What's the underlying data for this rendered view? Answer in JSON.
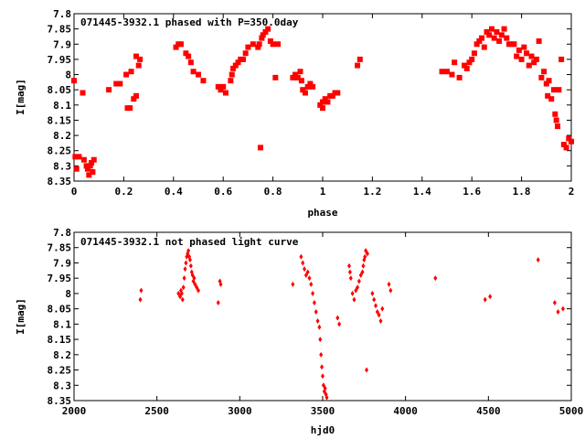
{
  "chart_data": [
    {
      "type": "scatter",
      "title": "071445-3932.1 phased with P=350.0day",
      "xlabel": "phase",
      "ylabel": "I[mag]",
      "xlim": [
        0,
        2
      ],
      "ylim": [
        8.35,
        7.8
      ],
      "y_inverted": true,
      "grid": false,
      "marker": "filled-square",
      "color": "#ff0000",
      "xticks": [
        "0",
        "0.2",
        "0.4",
        "0.6",
        "0.8",
        "1",
        "1.2",
        "1.4",
        "1.6",
        "1.8",
        "2"
      ],
      "yticks": [
        "7.8",
        "7.85",
        "7.9",
        "7.95",
        "8",
        "8.05",
        "8.1",
        "8.15",
        "8.2",
        "8.25",
        "8.3",
        "8.35"
      ],
      "points": [
        [
          0.0,
          8.02
        ],
        [
          0.005,
          8.27
        ],
        [
          0.01,
          8.31
        ],
        [
          0.02,
          8.27
        ],
        [
          0.035,
          8.06
        ],
        [
          0.04,
          8.28
        ],
        [
          0.05,
          8.3
        ],
        [
          0.055,
          8.31
        ],
        [
          0.06,
          8.33
        ],
        [
          0.065,
          8.3
        ],
        [
          0.07,
          8.29
        ],
        [
          0.075,
          8.32
        ],
        [
          0.08,
          8.28
        ],
        [
          0.14,
          8.05
        ],
        [
          0.17,
          8.03
        ],
        [
          0.185,
          8.03
        ],
        [
          0.21,
          8.0
        ],
        [
          0.215,
          8.11
        ],
        [
          0.225,
          8.11
        ],
        [
          0.23,
          7.99
        ],
        [
          0.24,
          8.08
        ],
        [
          0.25,
          8.07
        ],
        [
          0.25,
          7.94
        ],
        [
          0.26,
          7.97
        ],
        [
          0.265,
          7.95
        ],
        [
          0.41,
          7.91
        ],
        [
          0.42,
          7.9
        ],
        [
          0.43,
          7.9
        ],
        [
          0.45,
          7.93
        ],
        [
          0.46,
          7.94
        ],
        [
          0.47,
          7.96
        ],
        [
          0.48,
          7.99
        ],
        [
          0.5,
          8.0
        ],
        [
          0.52,
          8.02
        ],
        [
          0.58,
          8.04
        ],
        [
          0.59,
          8.05
        ],
        [
          0.6,
          8.04
        ],
        [
          0.61,
          8.06
        ],
        [
          0.63,
          8.02
        ],
        [
          0.635,
          8.0
        ],
        [
          0.64,
          7.98
        ],
        [
          0.65,
          7.97
        ],
        [
          0.66,
          7.96
        ],
        [
          0.67,
          7.95
        ],
        [
          0.68,
          7.95
        ],
        [
          0.69,
          7.93
        ],
        [
          0.7,
          7.91
        ],
        [
          0.72,
          7.9
        ],
        [
          0.74,
          7.91
        ],
        [
          0.745,
          7.9
        ],
        [
          0.75,
          8.24
        ],
        [
          0.755,
          7.88
        ],
        [
          0.76,
          7.87
        ],
        [
          0.77,
          7.86
        ],
        [
          0.78,
          7.85
        ],
        [
          0.79,
          7.89
        ],
        [
          0.8,
          7.9
        ],
        [
          0.81,
          8.01
        ],
        [
          0.82,
          7.9
        ],
        [
          0.88,
          8.01
        ],
        [
          0.89,
          8.0
        ],
        [
          0.9,
          8.01
        ],
        [
          0.91,
          7.99
        ],
        [
          0.915,
          8.02
        ],
        [
          0.92,
          8.05
        ],
        [
          0.93,
          8.06
        ],
        [
          0.94,
          8.04
        ],
        [
          0.95,
          8.03
        ],
        [
          0.96,
          8.04
        ],
        [
          0.99,
          8.1
        ],
        [
          1.0,
          8.11
        ],
        [
          1.0,
          8.09
        ],
        [
          1.01,
          8.08
        ],
        [
          1.02,
          8.09
        ],
        [
          1.03,
          8.07
        ],
        [
          1.04,
          8.07
        ],
        [
          1.05,
          8.06
        ],
        [
          1.06,
          8.06
        ],
        [
          1.14,
          7.97
        ],
        [
          1.15,
          7.95
        ],
        [
          1.48,
          7.99
        ],
        [
          1.5,
          7.99
        ],
        [
          1.52,
          8.0
        ],
        [
          1.53,
          7.96
        ],
        [
          1.55,
          8.01
        ],
        [
          1.57,
          7.97
        ],
        [
          1.58,
          7.98
        ],
        [
          1.59,
          7.96
        ],
        [
          1.6,
          7.95
        ],
        [
          1.61,
          7.93
        ],
        [
          1.62,
          7.9
        ],
        [
          1.63,
          7.89
        ],
        [
          1.64,
          7.88
        ],
        [
          1.65,
          7.91
        ],
        [
          1.66,
          7.86
        ],
        [
          1.67,
          7.87
        ],
        [
          1.68,
          7.85
        ],
        [
          1.69,
          7.88
        ],
        [
          1.7,
          7.86
        ],
        [
          1.71,
          7.89
        ],
        [
          1.72,
          7.87
        ],
        [
          1.73,
          7.85
        ],
        [
          1.74,
          7.88
        ],
        [
          1.75,
          7.9
        ],
        [
          1.76,
          7.9
        ],
        [
          1.77,
          7.9
        ],
        [
          1.78,
          7.94
        ],
        [
          1.79,
          7.92
        ],
        [
          1.8,
          7.95
        ],
        [
          1.81,
          7.91
        ],
        [
          1.82,
          7.93
        ],
        [
          1.83,
          7.97
        ],
        [
          1.84,
          7.94
        ],
        [
          1.85,
          7.96
        ],
        [
          1.86,
          7.95
        ],
        [
          1.87,
          7.89
        ],
        [
          1.88,
          8.01
        ],
        [
          1.89,
          7.99
        ],
        [
          1.9,
          8.03
        ],
        [
          1.905,
          8.07
        ],
        [
          1.91,
          8.02
        ],
        [
          1.92,
          8.08
        ],
        [
          1.93,
          8.05
        ],
        [
          1.935,
          8.13
        ],
        [
          1.94,
          8.15
        ],
        [
          1.945,
          8.17
        ],
        [
          1.95,
          8.05
        ],
        [
          1.96,
          7.95
        ],
        [
          1.97,
          8.23
        ],
        [
          1.98,
          8.24
        ],
        [
          1.99,
          8.21
        ],
        [
          2.0,
          8.22
        ]
      ]
    },
    {
      "type": "scatter",
      "title": "071445-3932.1 not phased light curve",
      "xlabel": "hjd0",
      "ylabel": "I[mag]",
      "xlim": [
        2000,
        5000
      ],
      "ylim": [
        8.35,
        7.8
      ],
      "y_inverted": true,
      "grid": false,
      "marker": "filled-diamond",
      "color": "#ff0000",
      "xticks": [
        "2000",
        "2500",
        "3000",
        "3500",
        "4000",
        "4500",
        "5000"
      ],
      "yticks": [
        "7.8",
        "7.85",
        "7.9",
        "7.95",
        "8",
        "8.05",
        "8.1",
        "8.15",
        "8.2",
        "8.25",
        "8.3",
        "8.35"
      ],
      "points": [
        [
          2400,
          8.02
        ],
        [
          2405,
          7.99
        ],
        [
          2630,
          8.0
        ],
        [
          2640,
          8.01
        ],
        [
          2645,
          7.99
        ],
        [
          2650,
          8.0
        ],
        [
          2655,
          8.02
        ],
        [
          2660,
          7.98
        ],
        [
          2665,
          7.95
        ],
        [
          2670,
          7.92
        ],
        [
          2675,
          7.9
        ],
        [
          2680,
          7.88
        ],
        [
          2685,
          7.87
        ],
        [
          2690,
          7.86
        ],
        [
          2695,
          7.88
        ],
        [
          2700,
          7.89
        ],
        [
          2705,
          7.91
        ],
        [
          2710,
          7.93
        ],
        [
          2715,
          7.94
        ],
        [
          2720,
          7.96
        ],
        [
          2725,
          7.95
        ],
        [
          2730,
          7.97
        ],
        [
          2740,
          7.98
        ],
        [
          2750,
          7.99
        ],
        [
          2870,
          8.03
        ],
        [
          2880,
          7.96
        ],
        [
          2885,
          7.97
        ],
        [
          3320,
          7.97
        ],
        [
          3370,
          7.88
        ],
        [
          3380,
          7.9
        ],
        [
          3390,
          7.92
        ],
        [
          3400,
          7.94
        ],
        [
          3410,
          7.93
        ],
        [
          3420,
          7.95
        ],
        [
          3430,
          7.97
        ],
        [
          3440,
          8.0
        ],
        [
          3450,
          8.03
        ],
        [
          3460,
          8.06
        ],
        [
          3470,
          8.09
        ],
        [
          3480,
          8.11
        ],
        [
          3485,
          8.15
        ],
        [
          3490,
          8.2
        ],
        [
          3495,
          8.24
        ],
        [
          3500,
          8.27
        ],
        [
          3505,
          8.3
        ],
        [
          3510,
          8.32
        ],
        [
          3515,
          8.31
        ],
        [
          3520,
          8.33
        ],
        [
          3525,
          8.34
        ],
        [
          3590,
          8.08
        ],
        [
          3600,
          8.1
        ],
        [
          3660,
          7.91
        ],
        [
          3665,
          7.93
        ],
        [
          3670,
          7.95
        ],
        [
          3680,
          8.0
        ],
        [
          3690,
          8.02
        ],
        [
          3700,
          7.99
        ],
        [
          3710,
          7.98
        ],
        [
          3720,
          7.96
        ],
        [
          3730,
          7.94
        ],
        [
          3740,
          7.93
        ],
        [
          3745,
          7.91
        ],
        [
          3750,
          7.89
        ],
        [
          3755,
          7.88
        ],
        [
          3760,
          7.86
        ],
        [
          3765,
          8.25
        ],
        [
          3770,
          7.87
        ],
        [
          3800,
          8.0
        ],
        [
          3810,
          8.02
        ],
        [
          3820,
          8.04
        ],
        [
          3830,
          8.06
        ],
        [
          3840,
          8.07
        ],
        [
          3850,
          8.09
        ],
        [
          3860,
          8.05
        ],
        [
          3900,
          7.97
        ],
        [
          3910,
          7.99
        ],
        [
          4180,
          7.95
        ],
        [
          4480,
          8.02
        ],
        [
          4510,
          8.01
        ],
        [
          4800,
          7.89
        ],
        [
          4900,
          8.03
        ],
        [
          4920,
          8.06
        ],
        [
          4950,
          8.05
        ]
      ]
    }
  ]
}
